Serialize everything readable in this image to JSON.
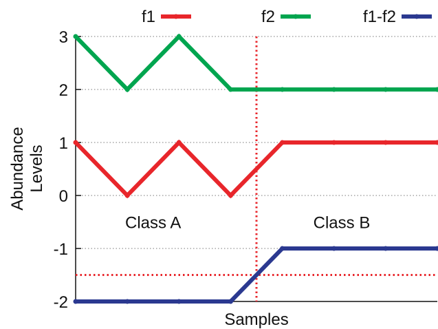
{
  "chart_data": {
    "type": "line",
    "title": "",
    "xlabel": "Samples",
    "ylabel": "Abundance Levels",
    "ylim": [
      -2,
      3
    ],
    "yticks": [
      "-2",
      "-1",
      "0",
      "1",
      "2",
      "3"
    ],
    "x": [
      1,
      2,
      3,
      4,
      5,
      6,
      7,
      8
    ],
    "xlim": [
      1,
      8
    ],
    "grid": "horizontal-dotted",
    "legend_position": "top",
    "series": [
      {
        "name": "f1",
        "color": "#e8262b",
        "values": [
          1,
          0,
          1,
          0,
          1,
          1,
          1,
          1
        ]
      },
      {
        "name": "f2",
        "color": "#00a54f",
        "values": [
          3,
          2,
          3,
          2,
          2,
          2,
          2,
          2
        ]
      },
      {
        "name": "f1-f2",
        "color": "#2b3990",
        "values": [
          -2,
          -2,
          -2,
          -2,
          -1,
          -1,
          -1,
          -1
        ]
      }
    ],
    "reference_lines": {
      "color": "#e8262b",
      "vertical_x": 4.5,
      "horizontal_y": -1.5
    },
    "annotations": [
      {
        "text": "Class A",
        "x": 2.5,
        "y": -0.5
      },
      {
        "text": "Class B",
        "x": 6.15,
        "y": -0.5
      }
    ]
  }
}
